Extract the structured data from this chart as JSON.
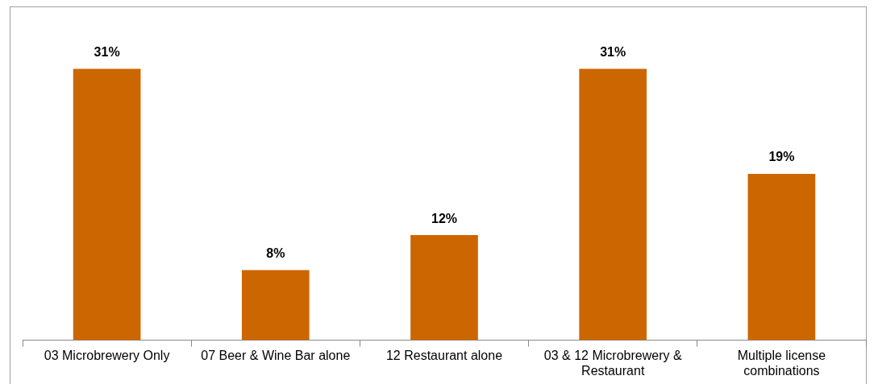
{
  "chart_data": {
    "type": "bar",
    "categories": [
      "03 Microbrewery Only",
      "07 Beer & Wine Bar alone",
      "12 Restaurant alone",
      "03 & 12 Microbrewery & Restaurant",
      "Multiple license combinations"
    ],
    "values": [
      31,
      8,
      12,
      31,
      19
    ],
    "color": "#cc6600",
    "value_labels": [
      "31%",
      "8%",
      "12%",
      "31%",
      "19%"
    ],
    "grid": false,
    "legend": false
  }
}
